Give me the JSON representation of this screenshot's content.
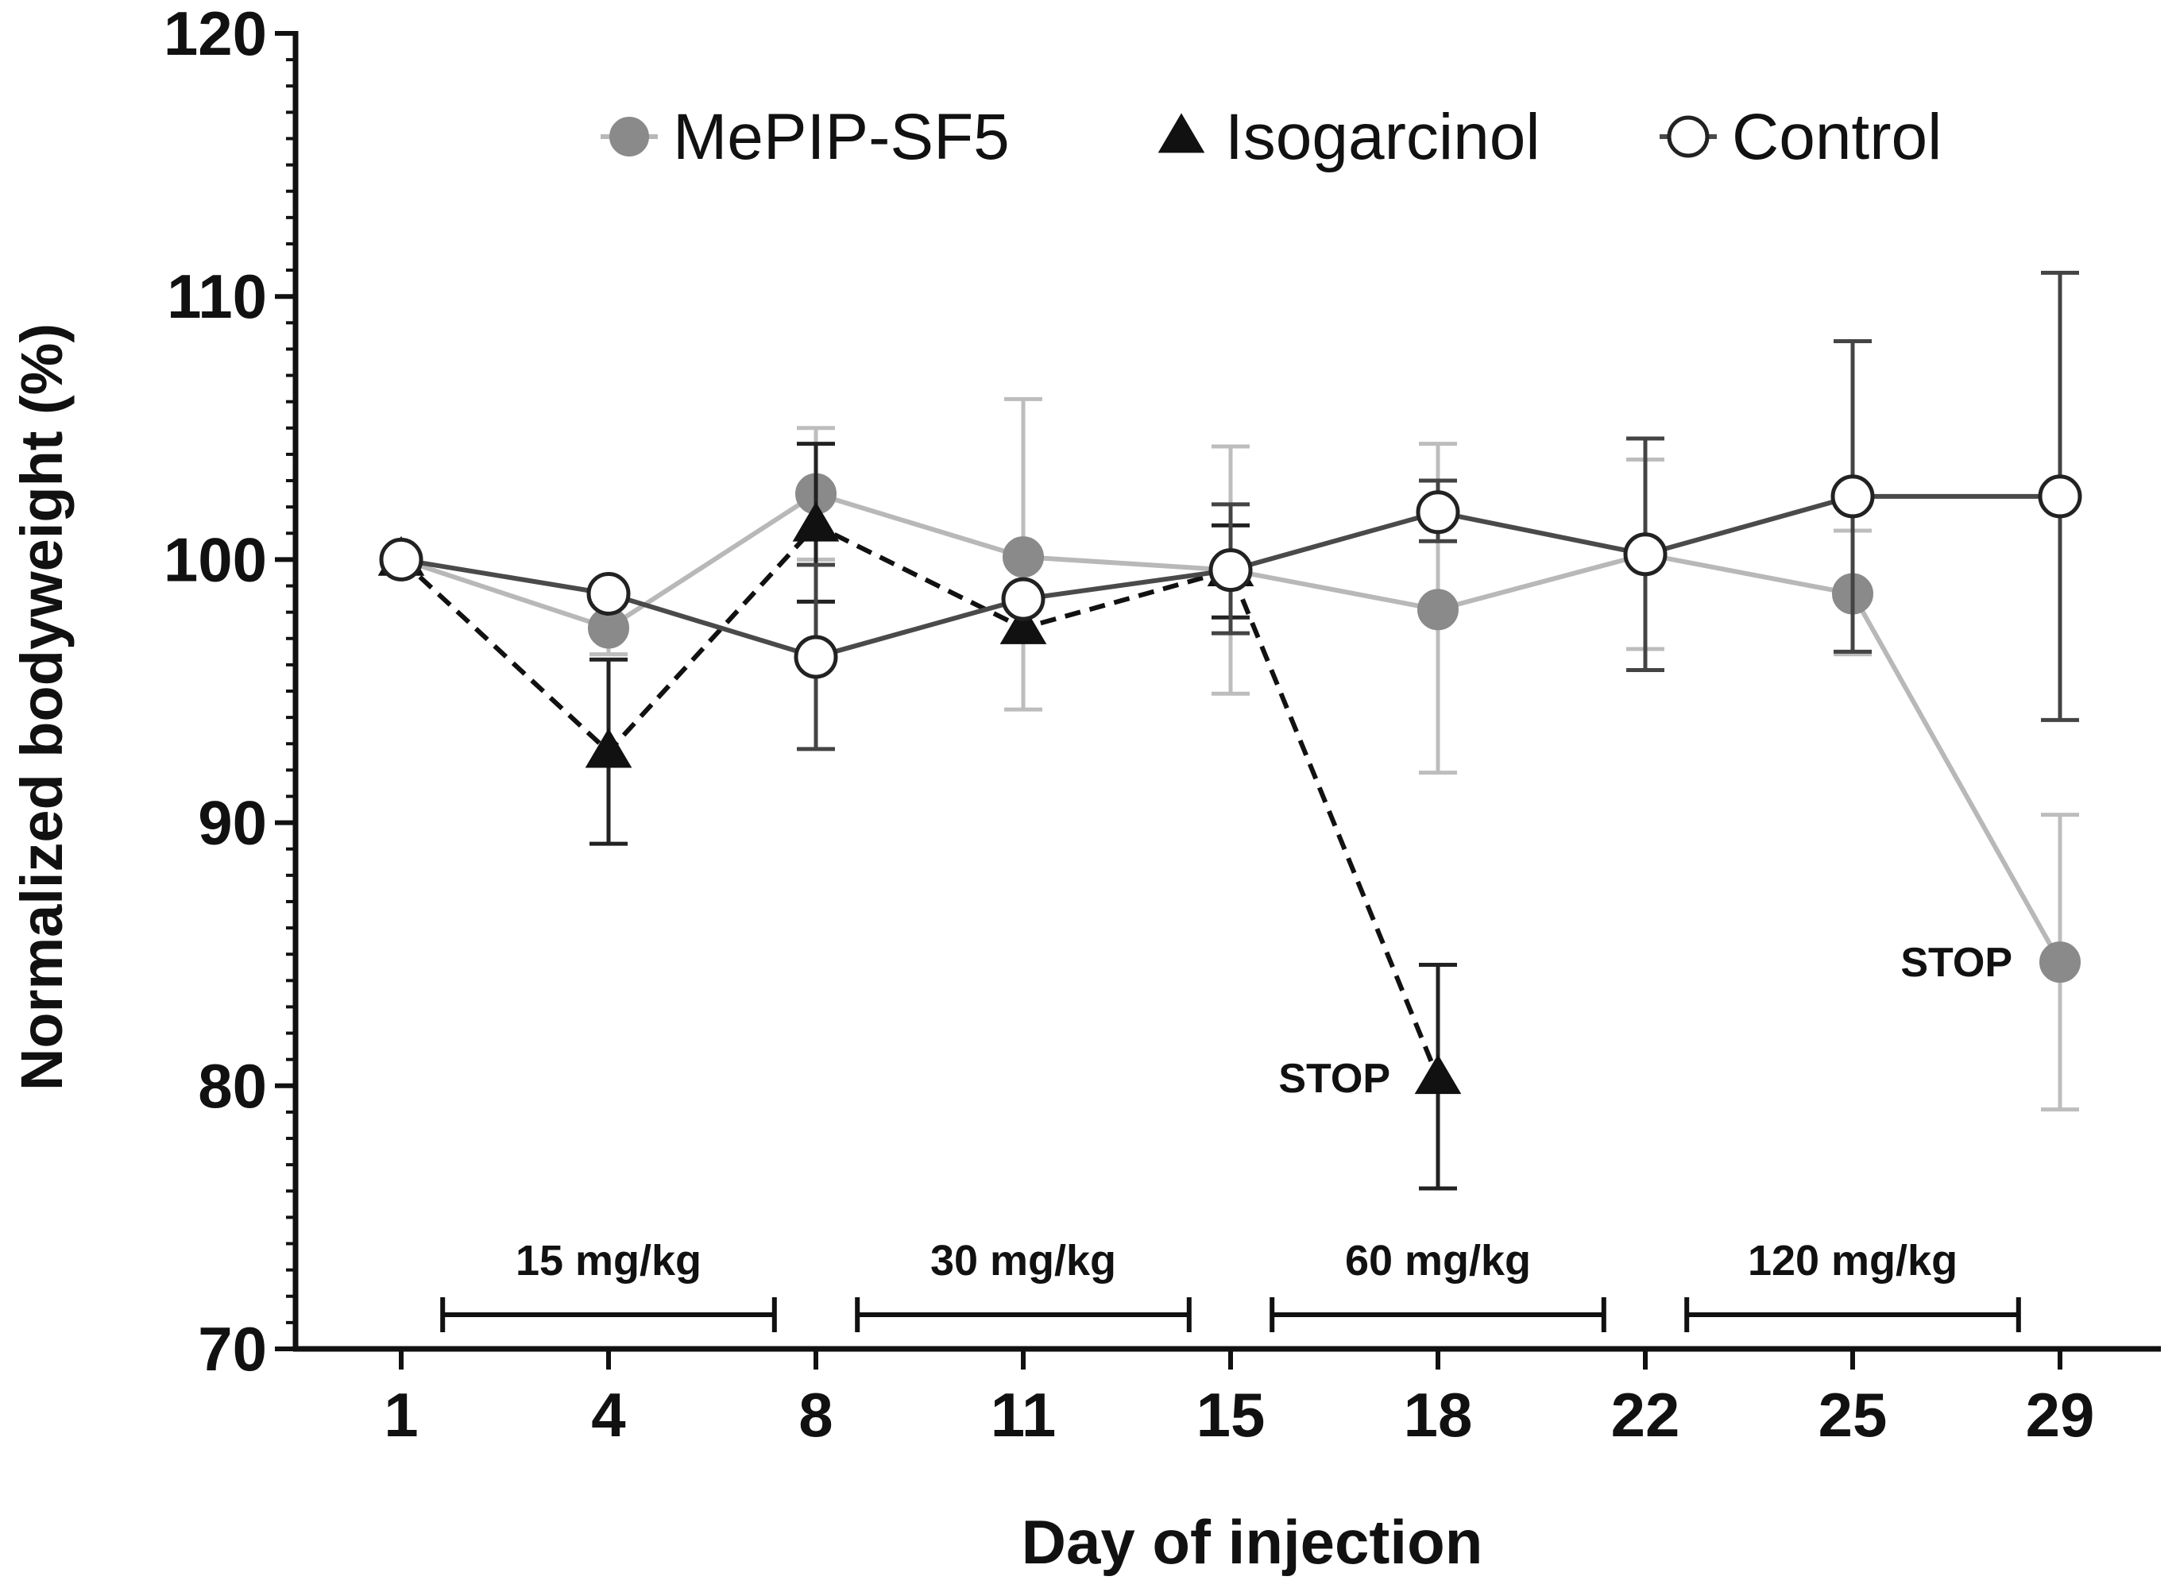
{
  "chart_data": {
    "type": "line",
    "title": "",
    "xlabel": "Day of injection",
    "ylabel": "Normalized bodyweight (%)",
    "x_ticks": [
      "1",
      "4",
      "8",
      "11",
      "15",
      "18",
      "22",
      "25",
      "29"
    ],
    "y_ticks": [
      "70",
      "80",
      "90",
      "100",
      "110",
      "120"
    ],
    "ylim": [
      70,
      120
    ],
    "grid": false,
    "legend_position": "top",
    "series": [
      {
        "name": "MePIP-SF5",
        "marker": "filled-circle",
        "color": "#8a8a8a",
        "line_color": "#b8b8b8",
        "error_color": "#bdbdbd",
        "dash": "solid",
        "points": [
          {
            "x": 1,
            "y": 100.0,
            "lo": 100.0,
            "hi": 100.0
          },
          {
            "x": 4,
            "y": 97.4,
            "lo": 96.4,
            "hi": 98.4
          },
          {
            "x": 8,
            "y": 102.5,
            "lo": 100.0,
            "hi": 105.0
          },
          {
            "x": 11,
            "y": 100.1,
            "lo": 94.3,
            "hi": 106.1
          },
          {
            "x": 15,
            "y": 99.6,
            "lo": 94.9,
            "hi": 104.3
          },
          {
            "x": 18,
            "y": 98.1,
            "lo": 91.9,
            "hi": 104.4
          },
          {
            "x": 22,
            "y": 100.2,
            "lo": 96.6,
            "hi": 103.8
          },
          {
            "x": 25,
            "y": 98.7,
            "lo": 96.4,
            "hi": 101.1
          },
          {
            "x": 29,
            "y": 84.7,
            "lo": 79.1,
            "hi": 90.3
          }
        ]
      },
      {
        "name": "Isogarcinol",
        "marker": "filled-triangle",
        "color": "#111111",
        "line_color": "#111111",
        "error_color": "#222222",
        "dash": "dashed",
        "points": [
          {
            "x": 1,
            "y": 100.0,
            "lo": 100.0,
            "hi": 100.0
          },
          {
            "x": 4,
            "y": 92.7,
            "lo": 89.2,
            "hi": 96.2
          },
          {
            "x": 8,
            "y": 101.3,
            "lo": 98.4,
            "hi": 104.4
          },
          {
            "x": 11,
            "y": 97.4,
            "lo": 97.4,
            "hi": 97.4
          },
          {
            "x": 15,
            "y": 99.6,
            "lo": 97.8,
            "hi": 101.3
          },
          {
            "x": 18,
            "y": 80.3,
            "lo": 76.1,
            "hi": 84.6
          }
        ]
      },
      {
        "name": "Control",
        "marker": "open-circle",
        "color": "#ffffff",
        "line_color": "#4a4a4a",
        "error_color": "#444444",
        "dash": "solid",
        "points": [
          {
            "x": 1,
            "y": 100.0,
            "lo": 100.0,
            "hi": 100.0
          },
          {
            "x": 4,
            "y": 98.7,
            "lo": 98.7,
            "hi": 98.7
          },
          {
            "x": 8,
            "y": 96.3,
            "lo": 92.8,
            "hi": 99.8
          },
          {
            "x": 11,
            "y": 98.5,
            "lo": 98.5,
            "hi": 98.5
          },
          {
            "x": 15,
            "y": 99.6,
            "lo": 97.2,
            "hi": 102.1
          },
          {
            "x": 18,
            "y": 101.8,
            "lo": 100.7,
            "hi": 103.0
          },
          {
            "x": 22,
            "y": 100.2,
            "lo": 95.8,
            "hi": 104.6
          },
          {
            "x": 25,
            "y": 102.4,
            "lo": 96.5,
            "hi": 108.3
          },
          {
            "x": 29,
            "y": 102.4,
            "lo": 93.9,
            "hi": 110.9
          }
        ]
      }
    ],
    "dose_ranges": [
      {
        "label": "15 mg/kg",
        "start": 0.2,
        "end": 1.8
      },
      {
        "label": "30 mg/kg",
        "start": 2.2,
        "end": 3.8
      },
      {
        "label": "60 mg/kg",
        "start": 4.2,
        "end": 5.8
      },
      {
        "label": "120 mg/kg",
        "start": 6.2,
        "end": 7.8
      }
    ],
    "annotations": [
      {
        "text": "STOP",
        "series": "Isogarcinol",
        "x": 18
      },
      {
        "text": "STOP",
        "series": "MePIP-SF5",
        "x": 29
      }
    ]
  }
}
